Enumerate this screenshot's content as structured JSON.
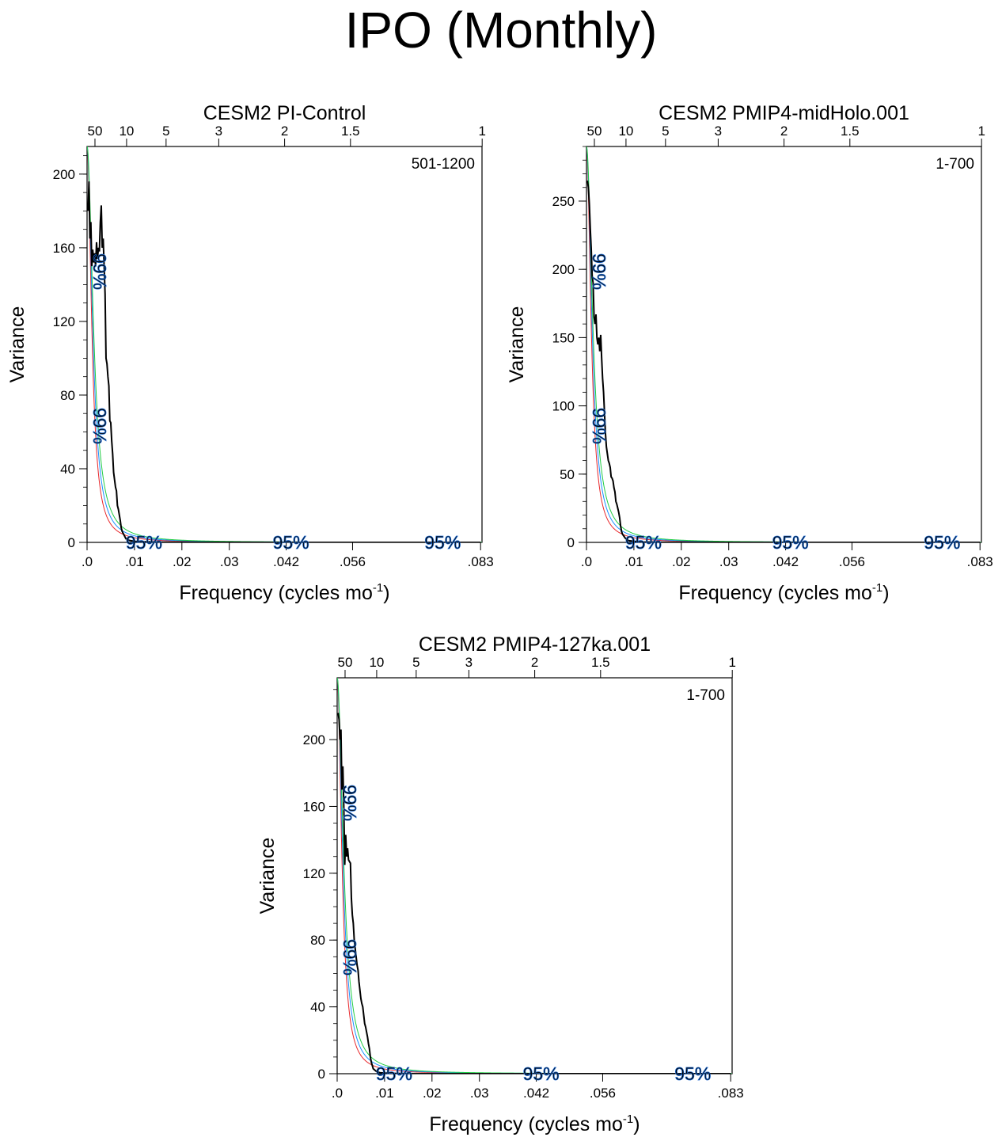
{
  "title": "IPO (Monthly)",
  "colors": {
    "spectrum": "#000000",
    "red_noise": "#e8262a",
    "sig95": "#1a8fff",
    "sig99": "#22cc44",
    "label_fill": "#22cc44",
    "label_outline": "#1a66cc"
  },
  "chart_data": [
    {
      "type": "line",
      "title": "CESM2 PI-Control",
      "period_label": "501-1200",
      "xlabel": "Frequency (cycles mo",
      "xlabel_sup": "-1",
      "xlabel_end": ")",
      "ylabel": "Variance",
      "xlim": [
        0,
        0.0833
      ],
      "ylim": [
        0,
        215
      ],
      "xticks": [
        0,
        0.01,
        0.02,
        0.03,
        0.042,
        0.056,
        0.083
      ],
      "xtick_labels": [
        ".0",
        ".01",
        ".02",
        ".03",
        ".042",
        ".056",
        ".083"
      ],
      "yticks": [
        0,
        40,
        80,
        120,
        160,
        200
      ],
      "ytick_labels": [
        "0",
        "40",
        "80",
        "120",
        "160",
        "200"
      ],
      "yminor_step": 10,
      "top_ticks": [
        50,
        10,
        5,
        3,
        2,
        1.5,
        1
      ],
      "top_tick_labels": [
        "50",
        "10",
        "5",
        "3",
        "2",
        "1.5",
        "1"
      ],
      "sig_label_99": "99%",
      "sig_label_95": "95%",
      "spectrum": {
        "x": [
          0.0002,
          0.0004,
          0.0006,
          0.0008,
          0.001,
          0.0012,
          0.0014,
          0.0016,
          0.0018,
          0.002,
          0.0022,
          0.0024,
          0.0026,
          0.0028,
          0.003,
          0.0032,
          0.0034,
          0.0036,
          0.0038,
          0.004,
          0.0042,
          0.0044,
          0.0046,
          0.0048,
          0.005,
          0.0052,
          0.0054,
          0.0056,
          0.0058,
          0.006,
          0.0062,
          0.0064,
          0.0066,
          0.0068,
          0.007,
          0.0072,
          0.0074,
          0.0076,
          0.0078,
          0.008,
          0.0082,
          0.0084,
          0.0086,
          0.0088,
          0.009,
          0.0095,
          0.01,
          0.011,
          0.012,
          0.014,
          0.016,
          0.02,
          0.03,
          0.04,
          0.05,
          0.06,
          0.07,
          0.083
        ],
        "y": [
          180,
          196,
          165,
          174,
          150,
          159,
          152,
          157,
          150,
          163,
          154,
          160,
          158,
          174,
          183,
          160,
          165,
          150,
          135,
          100,
          97,
          90,
          85,
          66,
          65,
          55,
          48,
          38,
          34,
          30,
          28,
          20,
          18,
          15,
          12,
          8,
          6,
          5,
          4,
          3,
          2,
          2,
          1.5,
          1.2,
          1,
          0.8,
          0.6,
          0.4,
          0.3,
          0.2,
          0.1,
          0.05,
          0.03,
          0.02,
          0.01,
          0.01,
          0.01,
          0.01
        ]
      },
      "red_noise": {
        "peak": 215,
        "scale": 0.0011
      },
      "sig95": {
        "peak": 215,
        "scale": 0.0013
      },
      "sig99": {
        "peak": 215,
        "scale": 0.0015
      }
    },
    {
      "type": "line",
      "title": "CESM2 PMIP4-midHolo.001",
      "period_label": "1-700",
      "xlabel": "Frequency (cycles mo",
      "xlabel_sup": "-1",
      "xlabel_end": ")",
      "ylabel": "Variance",
      "xlim": [
        0,
        0.0833
      ],
      "ylim": [
        0,
        290
      ],
      "xticks": [
        0,
        0.01,
        0.02,
        0.03,
        0.042,
        0.056,
        0.083
      ],
      "xtick_labels": [
        ".0",
        ".01",
        ".02",
        ".03",
        ".042",
        ".056",
        ".083"
      ],
      "yticks": [
        0,
        50,
        100,
        150,
        200,
        250
      ],
      "ytick_labels": [
        "0",
        "50",
        "100",
        "150",
        "200",
        "250"
      ],
      "yminor_step": 10,
      "top_ticks": [
        50,
        10,
        5,
        3,
        2,
        1.5,
        1
      ],
      "top_tick_labels": [
        "50",
        "10",
        "5",
        "3",
        "2",
        "1.5",
        "1"
      ],
      "sig_label_99": "99%",
      "sig_label_95": "95%",
      "spectrum": {
        "x": [
          0.0002,
          0.0004,
          0.0006,
          0.0008,
          0.001,
          0.0012,
          0.0014,
          0.0016,
          0.0018,
          0.002,
          0.0022,
          0.0024,
          0.0026,
          0.0028,
          0.003,
          0.0032,
          0.0034,
          0.0036,
          0.0038,
          0.004,
          0.0042,
          0.0044,
          0.0046,
          0.0048,
          0.005,
          0.0052,
          0.0054,
          0.0056,
          0.0058,
          0.006,
          0.0062,
          0.0064,
          0.0066,
          0.0068,
          0.007,
          0.0072,
          0.0074,
          0.0076,
          0.0078,
          0.008,
          0.0082,
          0.0084,
          0.0086,
          0.0088,
          0.009,
          0.0095,
          0.01,
          0.011,
          0.012,
          0.014,
          0.016,
          0.02,
          0.03,
          0.04,
          0.05,
          0.06,
          0.07,
          0.083
        ],
        "y": [
          265,
          260,
          248,
          230,
          215,
          195,
          190,
          165,
          160,
          167,
          150,
          145,
          150,
          140,
          152,
          135,
          120,
          110,
          95,
          80,
          70,
          65,
          60,
          58,
          55,
          48,
          47,
          45,
          40,
          37,
          30,
          28,
          25,
          22,
          18,
          12,
          8,
          6,
          5,
          4,
          3,
          2.5,
          2,
          1.5,
          1.2,
          1,
          0.8,
          0.5,
          0.3,
          0.2,
          0.1,
          0.05,
          0.03,
          0.02,
          0.01,
          0.01,
          0.01,
          0.01
        ]
      },
      "red_noise": {
        "peak": 290,
        "scale": 0.0011
      },
      "sig95": {
        "peak": 290,
        "scale": 0.0013
      },
      "sig99": {
        "peak": 290,
        "scale": 0.0015
      }
    },
    {
      "type": "line",
      "title": "CESM2 PMIP4-127ka.001",
      "period_label": "1-700",
      "xlabel": "Frequency (cycles mo",
      "xlabel_sup": "-1",
      "xlabel_end": ")",
      "ylabel": "Variance",
      "xlim": [
        0,
        0.0833
      ],
      "ylim": [
        0,
        237
      ],
      "xticks": [
        0,
        0.01,
        0.02,
        0.03,
        0.042,
        0.056,
        0.083
      ],
      "xtick_labels": [
        ".0",
        ".01",
        ".02",
        ".03",
        ".042",
        ".056",
        ".083"
      ],
      "yticks": [
        0,
        40,
        80,
        120,
        160,
        200
      ],
      "ytick_labels": [
        "0",
        "40",
        "80",
        "120",
        "160",
        "200"
      ],
      "yminor_step": 10,
      "top_ticks": [
        50,
        10,
        5,
        3,
        2,
        1.5,
        1
      ],
      "top_tick_labels": [
        "50",
        "10",
        "5",
        "3",
        "2",
        "1.5",
        "1"
      ],
      "sig_label_99": "99%",
      "sig_label_95": "95%",
      "spectrum": {
        "x": [
          0.0002,
          0.0004,
          0.0006,
          0.0008,
          0.001,
          0.0012,
          0.0014,
          0.0016,
          0.0018,
          0.002,
          0.0022,
          0.0024,
          0.0026,
          0.0028,
          0.003,
          0.0032,
          0.0034,
          0.0036,
          0.0038,
          0.004,
          0.0042,
          0.0044,
          0.0046,
          0.0048,
          0.005,
          0.0052,
          0.0054,
          0.0056,
          0.0058,
          0.006,
          0.0062,
          0.0064,
          0.0066,
          0.0068,
          0.007,
          0.0072,
          0.0074,
          0.0076,
          0.0078,
          0.008,
          0.0082,
          0.0084,
          0.0086,
          0.0088,
          0.009,
          0.0095,
          0.01,
          0.011,
          0.012,
          0.014,
          0.016,
          0.02,
          0.03,
          0.04,
          0.05,
          0.06,
          0.07,
          0.083
        ],
        "y": [
          216,
          212,
          200,
          206,
          170,
          184,
          160,
          125,
          143,
          130,
          135,
          128,
          127,
          126,
          105,
          95,
          90,
          80,
          75,
          70,
          65,
          62,
          55,
          50,
          45,
          42,
          40,
          35,
          30,
          28,
          25,
          22,
          18,
          15,
          10,
          7,
          5,
          3,
          2.5,
          2,
          1.5,
          1.2,
          1,
          0.8,
          0.6,
          0.5,
          0.4,
          0.3,
          0.2,
          0.1,
          0.05,
          0.03,
          0.02,
          0.01,
          0.01,
          0.01,
          0.01,
          0.01
        ]
      },
      "red_noise": {
        "peak": 237,
        "scale": 0.0011
      },
      "sig95": {
        "peak": 237,
        "scale": 0.0013
      },
      "sig99": {
        "peak": 237,
        "scale": 0.0015
      }
    }
  ]
}
